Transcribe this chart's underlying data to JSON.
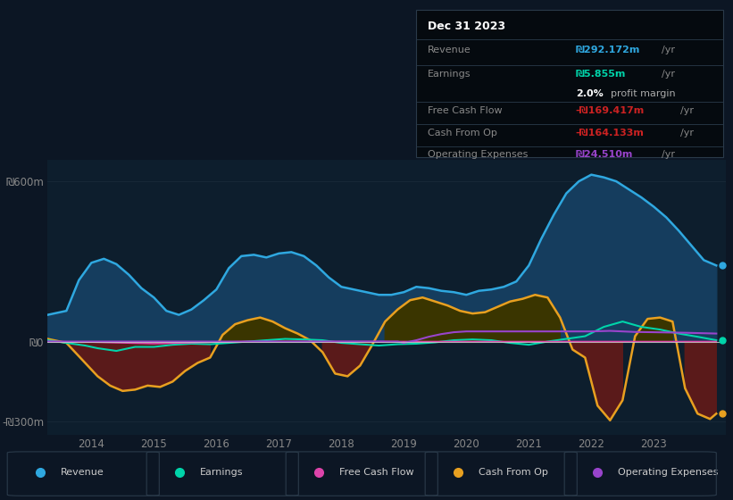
{
  "bg_color": "#0c1624",
  "plot_bg_color": "#0d1e2d",
  "grid_color": "#1a2a3a",
  "ylim": [
    -350,
    680
  ],
  "yticks": [
    -300,
    0,
    600
  ],
  "ytick_labels": [
    "-₪300m",
    "₪0",
    "₪600m"
  ],
  "xlabel_years": [
    2014,
    2015,
    2016,
    2017,
    2018,
    2019,
    2020,
    2021,
    2022,
    2023
  ],
  "title": "Dec 31 2023",
  "revenue": {
    "x": [
      2013.3,
      2013.6,
      2013.8,
      2014.0,
      2014.2,
      2014.4,
      2014.6,
      2014.8,
      2015.0,
      2015.2,
      2015.4,
      2015.6,
      2015.8,
      2016.0,
      2016.2,
      2016.4,
      2016.6,
      2016.8,
      2017.0,
      2017.2,
      2017.4,
      2017.6,
      2017.8,
      2018.0,
      2018.2,
      2018.4,
      2018.6,
      2018.8,
      2019.0,
      2019.2,
      2019.4,
      2019.6,
      2019.8,
      2020.0,
      2020.2,
      2020.4,
      2020.6,
      2020.8,
      2021.0,
      2021.2,
      2021.4,
      2021.6,
      2021.8,
      2022.0,
      2022.2,
      2022.4,
      2022.6,
      2022.8,
      2023.0,
      2023.2,
      2023.4,
      2023.6,
      2023.8,
      2024.0
    ],
    "y": [
      100,
      115,
      230,
      295,
      310,
      290,
      250,
      200,
      165,
      115,
      100,
      120,
      155,
      195,
      275,
      320,
      325,
      315,
      330,
      335,
      320,
      285,
      240,
      205,
      195,
      185,
      175,
      175,
      185,
      205,
      200,
      190,
      185,
      175,
      190,
      195,
      205,
      225,
      285,
      385,
      475,
      555,
      600,
      625,
      615,
      600,
      570,
      540,
      505,
      465,
      415,
      360,
      305,
      285
    ]
  },
  "earnings": {
    "x": [
      2013.3,
      2013.6,
      2013.9,
      2014.1,
      2014.4,
      2014.7,
      2015.0,
      2015.3,
      2015.6,
      2015.9,
      2016.2,
      2016.5,
      2016.8,
      2017.1,
      2017.4,
      2017.7,
      2018.0,
      2018.3,
      2018.6,
      2018.9,
      2019.2,
      2019.5,
      2019.8,
      2020.1,
      2020.4,
      2020.7,
      2021.0,
      2021.3,
      2021.6,
      2021.9,
      2022.2,
      2022.5,
      2022.8,
      2023.1,
      2023.4,
      2023.7,
      2024.0
    ],
    "y": [
      5,
      -5,
      -15,
      -25,
      -35,
      -20,
      -20,
      -12,
      -8,
      -10,
      -5,
      0,
      5,
      10,
      8,
      5,
      -5,
      -10,
      -15,
      -10,
      -8,
      -3,
      5,
      8,
      5,
      -5,
      -12,
      0,
      10,
      20,
      55,
      75,
      55,
      45,
      30,
      18,
      5
    ]
  },
  "cash_from_op": {
    "x": [
      2013.3,
      2013.6,
      2013.9,
      2014.1,
      2014.3,
      2014.5,
      2014.7,
      2014.9,
      2015.1,
      2015.3,
      2015.5,
      2015.7,
      2015.9,
      2016.1,
      2016.3,
      2016.5,
      2016.7,
      2016.9,
      2017.1,
      2017.3,
      2017.5,
      2017.7,
      2017.9,
      2018.1,
      2018.3,
      2018.5,
      2018.7,
      2018.9,
      2019.1,
      2019.3,
      2019.5,
      2019.7,
      2019.9,
      2020.1,
      2020.3,
      2020.5,
      2020.7,
      2020.9,
      2021.1,
      2021.3,
      2021.5,
      2021.7,
      2021.9,
      2022.1,
      2022.3,
      2022.5,
      2022.7,
      2022.9,
      2023.1,
      2023.3,
      2023.5,
      2023.7,
      2023.9,
      2024.0
    ],
    "y": [
      10,
      -5,
      -80,
      -130,
      -165,
      -185,
      -180,
      -165,
      -170,
      -150,
      -110,
      -80,
      -60,
      25,
      65,
      80,
      90,
      75,
      50,
      30,
      5,
      -40,
      -120,
      -130,
      -90,
      -10,
      75,
      120,
      155,
      165,
      150,
      135,
      115,
      105,
      110,
      130,
      150,
      160,
      175,
      165,
      90,
      -30,
      -60,
      -240,
      -295,
      -220,
      20,
      85,
      90,
      75,
      -175,
      -270,
      -290,
      -270
    ]
  },
  "free_cash_flow": {
    "x": [
      2013.3,
      2014.0,
      2014.5,
      2015.0,
      2015.5,
      2016.0,
      2016.5,
      2017.0,
      2017.5,
      2018.0,
      2018.5,
      2019.0,
      2019.5,
      2020.0,
      2020.5,
      2021.0,
      2021.5,
      2022.0,
      2022.5,
      2023.0,
      2023.5,
      2024.0
    ],
    "y": [
      0,
      -2,
      -5,
      -8,
      -5,
      -2,
      0,
      0,
      0,
      0,
      0,
      0,
      0,
      0,
      0,
      0,
      0,
      0,
      0,
      0,
      0,
      0
    ]
  },
  "operating_expenses": {
    "x": [
      2013.3,
      2014.0,
      2015.0,
      2016.0,
      2017.0,
      2018.0,
      2018.9,
      2019.0,
      2019.2,
      2019.4,
      2019.6,
      2019.8,
      2020.0,
      2020.5,
      2021.0,
      2021.5,
      2022.0,
      2022.3,
      2022.5,
      2022.7,
      2023.0,
      2023.5,
      2024.0
    ],
    "y": [
      0,
      0,
      0,
      0,
      0,
      0,
      0,
      -5,
      5,
      18,
      28,
      35,
      38,
      38,
      38,
      38,
      38,
      40,
      38,
      36,
      35,
      33,
      30
    ]
  },
  "colors": {
    "revenue_line": "#2fa8e0",
    "revenue_fill": "#153d5e",
    "earnings_line": "#00d4aa",
    "cash_from_op_line": "#e8a020",
    "cash_from_op_fill_pos": "#3a3500",
    "cash_from_op_fill_neg": "#5a1a1a",
    "free_cash_flow_line": "#dd44aa",
    "operating_expenses_line": "#9944cc",
    "zero_line": "#cccccc"
  },
  "legend": [
    {
      "label": "Revenue",
      "color": "#2fa8e0"
    },
    {
      "label": "Earnings",
      "color": "#00d4aa"
    },
    {
      "label": "Free Cash Flow",
      "color": "#dd44aa"
    },
    {
      "label": "Cash From Op",
      "color": "#e8a020"
    },
    {
      "label": "Operating Expenses",
      "color": "#9944cc"
    }
  ],
  "info": {
    "title": "Dec 31 2023",
    "rows": [
      {
        "label": "Revenue",
        "value": "₪292.172m /yr",
        "value_color": "#2fa8e0",
        "separator_before": true
      },
      {
        "label": "Earnings",
        "value": "₪5.855m /yr",
        "value_color": "#00d4aa",
        "separator_before": false
      },
      {
        "label": "",
        "value": "2.0% profit margin",
        "value_color": "#dddddd",
        "separator_before": false
      },
      {
        "label": "Free Cash Flow",
        "value": "-₪169.417m /yr",
        "value_color": "#cc2222",
        "separator_before": true
      },
      {
        "label": "Cash From Op",
        "value": "-₪164.133m /yr",
        "value_color": "#cc2222",
        "separator_before": true
      },
      {
        "label": "Operating Expenses",
        "value": "₪24.510m /yr",
        "value_color": "#9944cc",
        "separator_before": true
      }
    ]
  }
}
